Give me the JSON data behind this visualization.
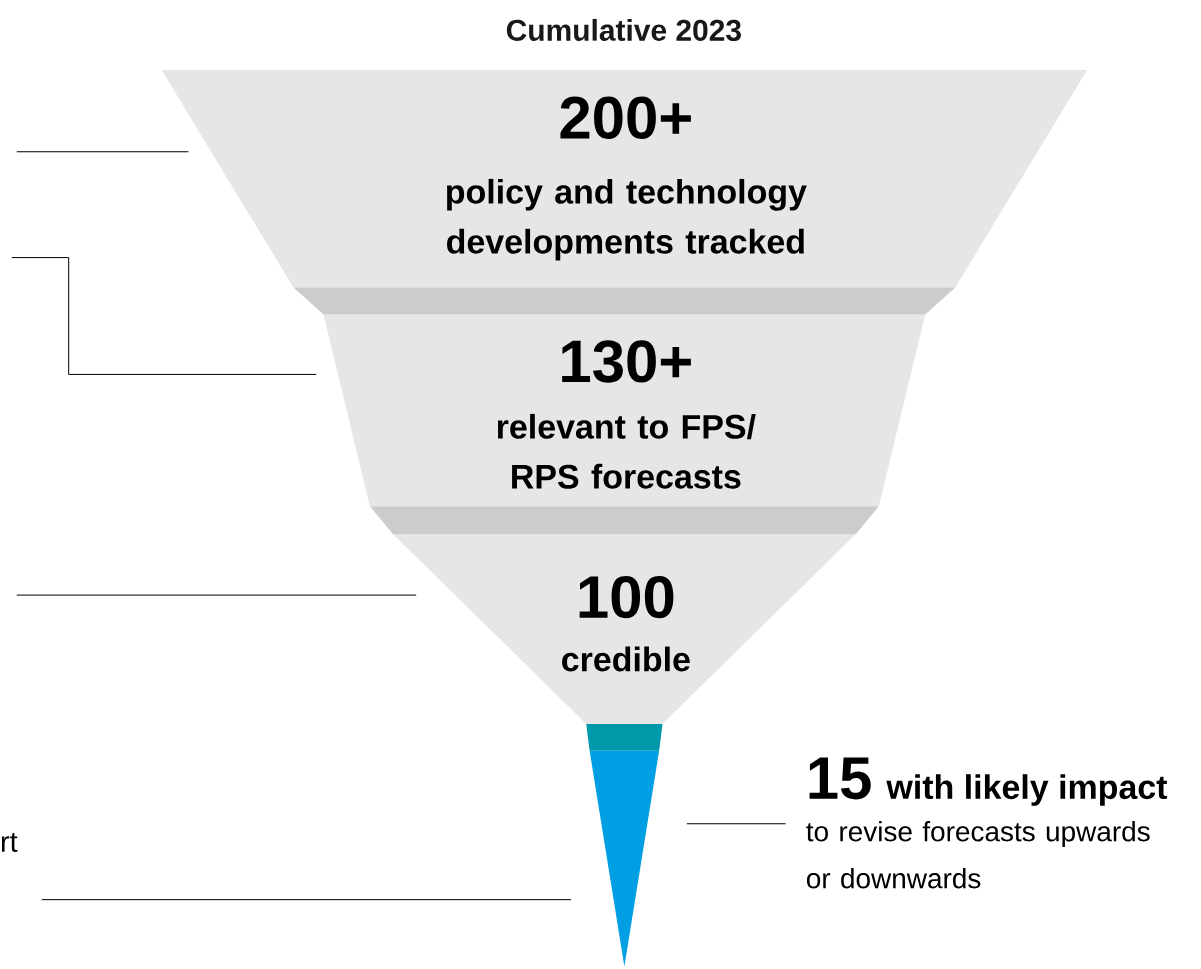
{
  "chart_data": {
    "type": "other",
    "title": "Cumulative 2023",
    "categories": [
      "policy and technology developments tracked",
      "relevant to FPS/ RPS forecasts",
      "credible",
      "with likely impact"
    ],
    "values": [
      200,
      130,
      100,
      15
    ],
    "value_labels": [
      "200+",
      "130+",
      "100",
      "15"
    ],
    "colors": [
      "#e6e6e6",
      "#e6e6e6",
      "#e6e6e6",
      "#009fe3"
    ],
    "annotations": [
      "to revise forecasts upwards or downwards",
      "rt"
    ]
  }
}
